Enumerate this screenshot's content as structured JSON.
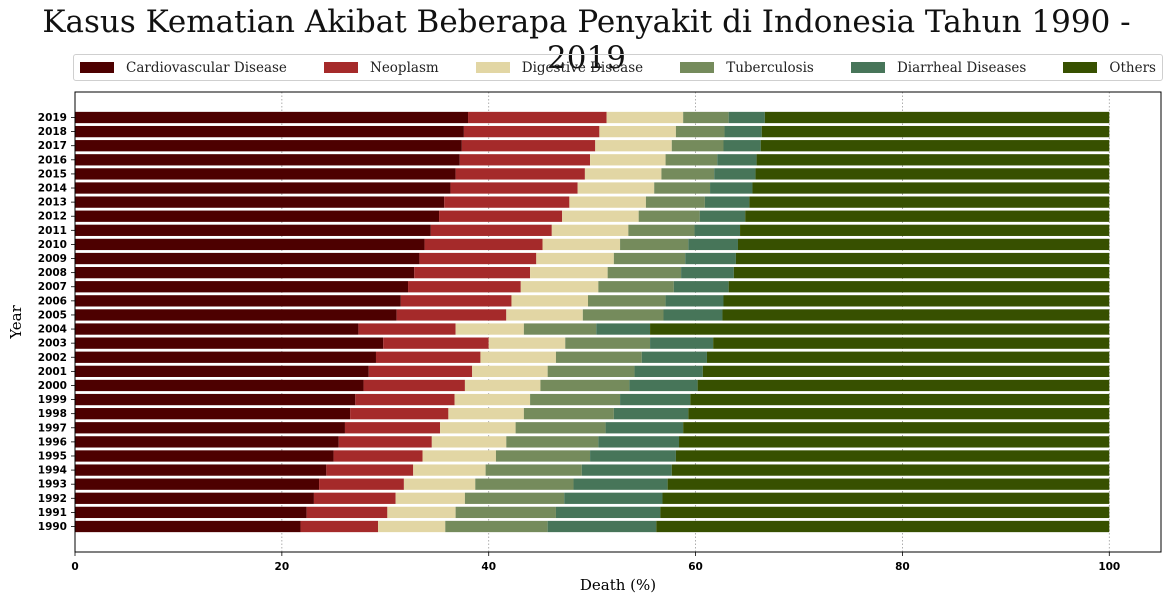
{
  "title": "Kasus Kematian Akibat Beberapa Penyakit di Indonesia Tahun 1990 - 2019",
  "chart_data": {
    "type": "bar",
    "orientation": "horizontal",
    "stacked": true,
    "title": "Kasus Kematian Akibat Beberapa Penyakit di Indonesia Tahun 1990 - 2019",
    "xlabel": "Death (%)",
    "ylabel": "Year",
    "xlim": [
      0,
      105
    ],
    "xticks": [
      0,
      20,
      40,
      60,
      80,
      100
    ],
    "grid": "vertical dotted",
    "legend_position": "top",
    "categories": [
      "1990",
      "1991",
      "1992",
      "1993",
      "1994",
      "1995",
      "1996",
      "1997",
      "1998",
      "1999",
      "2000",
      "2001",
      "2002",
      "2003",
      "2004",
      "2005",
      "2006",
      "2007",
      "2008",
      "2009",
      "2010",
      "2011",
      "2012",
      "2013",
      "2014",
      "2015",
      "2016",
      "2017",
      "2018",
      "2019"
    ],
    "series": [
      {
        "name": "Cardiovascular Disease",
        "color": "#4d0000",
        "values": [
          21.8,
          22.4,
          23.1,
          23.6,
          24.3,
          25.0,
          25.5,
          26.1,
          26.6,
          27.1,
          27.9,
          28.4,
          29.1,
          29.8,
          27.4,
          31.1,
          31.5,
          32.2,
          32.8,
          33.3,
          33.8,
          34.4,
          35.2,
          35.7,
          36.3,
          36.8,
          37.2,
          37.4,
          37.6,
          38.0
        ]
      },
      {
        "name": "Neoplasm",
        "color": "#a52a2a",
        "values": [
          7.5,
          7.8,
          7.9,
          8.2,
          8.4,
          8.6,
          9.0,
          9.2,
          9.5,
          9.6,
          9.8,
          10.0,
          10.1,
          10.2,
          9.4,
          10.6,
          10.7,
          10.9,
          11.2,
          11.3,
          11.4,
          11.7,
          11.9,
          12.1,
          12.3,
          12.5,
          12.6,
          12.9,
          13.1,
          13.4
        ]
      },
      {
        "name": "Digestive Disease",
        "color": "#e2d6a4",
        "values": [
          6.5,
          6.6,
          6.7,
          6.9,
          7.0,
          7.1,
          7.2,
          7.3,
          7.3,
          7.3,
          7.3,
          7.3,
          7.3,
          7.4,
          6.6,
          7.4,
          7.4,
          7.5,
          7.5,
          7.5,
          7.5,
          7.4,
          7.4,
          7.4,
          7.4,
          7.4,
          7.3,
          7.4,
          7.4,
          7.4
        ]
      },
      {
        "name": "Tuberculosis",
        "color": "#758b5c",
        "values": [
          9.9,
          9.7,
          9.6,
          9.5,
          9.3,
          9.1,
          8.9,
          8.7,
          8.7,
          8.7,
          8.6,
          8.4,
          8.3,
          8.2,
          7.0,
          7.8,
          7.5,
          7.3,
          7.1,
          6.9,
          6.6,
          6.4,
          5.9,
          5.7,
          5.4,
          5.1,
          5.0,
          5.0,
          4.7,
          4.4
        ]
      },
      {
        "name": "Diarrheal Diseases",
        "color": "#477559",
        "values": [
          10.5,
          10.1,
          9.5,
          9.1,
          8.7,
          8.3,
          7.8,
          7.5,
          7.2,
          6.8,
          6.6,
          6.6,
          6.3,
          6.1,
          5.2,
          5.7,
          5.6,
          5.3,
          5.1,
          4.9,
          4.8,
          4.4,
          4.4,
          4.3,
          4.1,
          4.0,
          3.8,
          3.6,
          3.6,
          3.5
        ]
      },
      {
        "name": "Others",
        "color": "#375000",
        "values": [
          43.8,
          43.4,
          43.2,
          42.7,
          42.3,
          41.9,
          41.6,
          41.2,
          40.7,
          40.5,
          39.8,
          39.3,
          38.9,
          38.3,
          44.4,
          37.4,
          37.3,
          36.8,
          36.3,
          36.1,
          35.9,
          35.7,
          35.2,
          34.8,
          34.5,
          34.2,
          34.1,
          33.7,
          33.6,
          33.3
        ]
      }
    ]
  }
}
